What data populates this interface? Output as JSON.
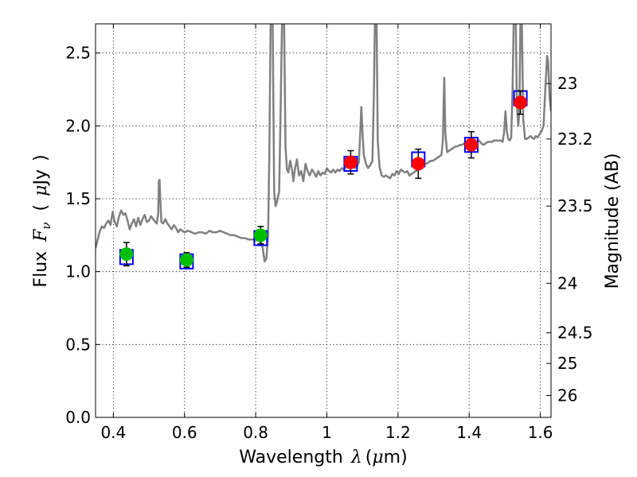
{
  "chart_data": {
    "type": "scatter",
    "xlabel": "Wavelength",
    "xlabel_symbol": "λ",
    "xlabel_unit_open": "(",
    "xlabel_unit_mu": "μ",
    "xlabel_unit_rest": "m)",
    "ylabel": "Flux",
    "ylabel_symbol": "F",
    "ylabel_subscript": "ν",
    "ylabel_unit_open": "(",
    "ylabel_unit_mu": "μ",
    "ylabel_unit_rest": "Jy",
    "ylabel_unit_close": ")",
    "y2label": "Magnitude (AB)",
    "xlim": [
      0.35,
      1.63
    ],
    "ylim": [
      0.0,
      2.7
    ],
    "grid": true,
    "x_ticks": [
      {
        "v": 0.4,
        "label": "0.4"
      },
      {
        "v": 0.6,
        "label": "0.6"
      },
      {
        "v": 0.8,
        "label": "0.8"
      },
      {
        "v": 1.0,
        "label": "1"
      },
      {
        "v": 1.2,
        "label": "1.2"
      },
      {
        "v": 1.4,
        "label": "1.4"
      },
      {
        "v": 1.6,
        "label": "1.6"
      }
    ],
    "y_ticks": [
      {
        "v": 0.0,
        "label": "0.0"
      },
      {
        "v": 0.5,
        "label": "0.5"
      },
      {
        "v": 1.0,
        "label": "1.0"
      },
      {
        "v": 1.5,
        "label": "1.5"
      },
      {
        "v": 2.0,
        "label": "2.0"
      },
      {
        "v": 2.5,
        "label": "2.5"
      }
    ],
    "y2_ticks": [
      {
        "flux": 2.29,
        "label": "23"
      },
      {
        "flux": 1.91,
        "label": "23.2"
      },
      {
        "flux": 1.45,
        "label": "23.5"
      },
      {
        "flux": 0.92,
        "label": "24"
      },
      {
        "flux": 0.58,
        "label": "24.5"
      },
      {
        "flux": 0.37,
        "label": "25"
      },
      {
        "flux": 0.15,
        "label": "26"
      }
    ],
    "series": [
      {
        "kind": "line",
        "color": "#808080",
        "points": [
          [
            0.35,
            1.16
          ],
          [
            0.356,
            1.22
          ],
          [
            0.362,
            1.28
          ],
          [
            0.368,
            1.31
          ],
          [
            0.374,
            1.3
          ],
          [
            0.38,
            1.33
          ],
          [
            0.386,
            1.35
          ],
          [
            0.392,
            1.32
          ],
          [
            0.398,
            1.41
          ],
          [
            0.404,
            1.34
          ],
          [
            0.41,
            1.31
          ],
          [
            0.416,
            1.38
          ],
          [
            0.422,
            1.42
          ],
          [
            0.428,
            1.39
          ],
          [
            0.434,
            1.4
          ],
          [
            0.44,
            1.35
          ],
          [
            0.446,
            1.29
          ],
          [
            0.452,
            1.33
          ],
          [
            0.458,
            1.36
          ],
          [
            0.464,
            1.31
          ],
          [
            0.47,
            1.37
          ],
          [
            0.476,
            1.32
          ],
          [
            0.482,
            1.36
          ],
          [
            0.488,
            1.39
          ],
          [
            0.494,
            1.34
          ],
          [
            0.5,
            1.35
          ],
          [
            0.506,
            1.38
          ],
          [
            0.512,
            1.36
          ],
          [
            0.518,
            1.34
          ],
          [
            0.522,
            1.33
          ],
          [
            0.526,
            1.4
          ],
          [
            0.528,
            1.62
          ],
          [
            0.53,
            1.63
          ],
          [
            0.532,
            1.5
          ],
          [
            0.535,
            1.34
          ],
          [
            0.54,
            1.33
          ],
          [
            0.546,
            1.36
          ],
          [
            0.552,
            1.33
          ],
          [
            0.558,
            1.31
          ],
          [
            0.564,
            1.29
          ],
          [
            0.57,
            1.32
          ],
          [
            0.576,
            1.3
          ],
          [
            0.582,
            1.27
          ],
          [
            0.588,
            1.29
          ],
          [
            0.594,
            1.28
          ],
          [
            0.6,
            1.27
          ],
          [
            0.61,
            1.28
          ],
          [
            0.62,
            1.27
          ],
          [
            0.63,
            1.26
          ],
          [
            0.64,
            1.27
          ],
          [
            0.65,
            1.27
          ],
          [
            0.66,
            1.26
          ],
          [
            0.67,
            1.28
          ],
          [
            0.68,
            1.27
          ],
          [
            0.69,
            1.27
          ],
          [
            0.7,
            1.28
          ],
          [
            0.71,
            1.27
          ],
          [
            0.72,
            1.26
          ],
          [
            0.73,
            1.25
          ],
          [
            0.74,
            1.25
          ],
          [
            0.75,
            1.24
          ],
          [
            0.76,
            1.23
          ],
          [
            0.77,
            1.23
          ],
          [
            0.78,
            1.22
          ],
          [
            0.79,
            1.22
          ],
          [
            0.8,
            1.22
          ],
          [
            0.81,
            1.21
          ],
          [
            0.815,
            1.2
          ],
          [
            0.82,
            1.16
          ],
          [
            0.825,
            1.07
          ],
          [
            0.83,
            1.09
          ],
          [
            0.835,
            1.25
          ],
          [
            0.838,
            1.75
          ],
          [
            0.842,
            2.7
          ],
          [
            0.848,
            2.7
          ],
          [
            0.852,
            1.55
          ],
          [
            0.856,
            1.45
          ],
          [
            0.86,
            1.48
          ],
          [
            0.866,
            1.55
          ],
          [
            0.87,
            2.1
          ],
          [
            0.874,
            2.7
          ],
          [
            0.88,
            2.7
          ],
          [
            0.884,
            1.85
          ],
          [
            0.888,
            1.7
          ],
          [
            0.892,
            1.68
          ],
          [
            0.897,
            1.76
          ],
          [
            0.902,
            1.7
          ],
          [
            0.906,
            1.62
          ],
          [
            0.91,
            1.7
          ],
          [
            0.916,
            1.77
          ],
          [
            0.922,
            1.66
          ],
          [
            0.928,
            1.69
          ],
          [
            0.934,
            1.62
          ],
          [
            0.94,
            1.74
          ],
          [
            0.946,
            1.69
          ],
          [
            0.952,
            1.66
          ],
          [
            0.958,
            1.7
          ],
          [
            0.964,
            1.68
          ],
          [
            0.97,
            1.65
          ],
          [
            0.976,
            1.69
          ],
          [
            0.982,
            1.66
          ],
          [
            0.988,
            1.68
          ],
          [
            0.994,
            1.67
          ],
          [
            1.0,
            1.71
          ],
          [
            1.006,
            1.69
          ],
          [
            1.012,
            1.68
          ],
          [
            1.018,
            1.7
          ],
          [
            1.024,
            1.68
          ],
          [
            1.03,
            1.7
          ],
          [
            1.036,
            1.69
          ],
          [
            1.042,
            1.71
          ],
          [
            1.048,
            1.7
          ],
          [
            1.054,
            1.72
          ],
          [
            1.06,
            1.71
          ],
          [
            1.066,
            1.72
          ],
          [
            1.072,
            1.73
          ],
          [
            1.078,
            1.71
          ],
          [
            1.084,
            1.72
          ],
          [
            1.09,
            1.75
          ],
          [
            1.094,
            1.96
          ],
          [
            1.097,
            2.13
          ],
          [
            1.1,
            1.96
          ],
          [
            1.104,
            1.8
          ],
          [
            1.11,
            1.74
          ],
          [
            1.116,
            1.71
          ],
          [
            1.122,
            1.73
          ],
          [
            1.128,
            1.76
          ],
          [
            1.132,
            2.2
          ],
          [
            1.135,
            2.7
          ],
          [
            1.14,
            2.7
          ],
          [
            1.143,
            1.9
          ],
          [
            1.148,
            1.72
          ],
          [
            1.154,
            1.66
          ],
          [
            1.16,
            1.65
          ],
          [
            1.166,
            1.66
          ],
          [
            1.172,
            1.65
          ],
          [
            1.178,
            1.64
          ],
          [
            1.184,
            1.67
          ],
          [
            1.19,
            1.66
          ],
          [
            1.196,
            1.69
          ],
          [
            1.202,
            1.67
          ],
          [
            1.208,
            1.7
          ],
          [
            1.214,
            1.69
          ],
          [
            1.22,
            1.68
          ],
          [
            1.226,
            1.69
          ],
          [
            1.232,
            1.66
          ],
          [
            1.238,
            1.67
          ],
          [
            1.244,
            1.68
          ],
          [
            1.25,
            1.69
          ],
          [
            1.256,
            1.7
          ],
          [
            1.262,
            1.72
          ],
          [
            1.268,
            1.73
          ],
          [
            1.274,
            1.74
          ],
          [
            1.28,
            1.74
          ],
          [
            1.286,
            1.75
          ],
          [
            1.292,
            1.76
          ],
          [
            1.298,
            1.76
          ],
          [
            1.304,
            1.77
          ],
          [
            1.31,
            1.78
          ],
          [
            1.316,
            1.79
          ],
          [
            1.322,
            1.8
          ],
          [
            1.326,
            1.9
          ],
          [
            1.33,
            2.33
          ],
          [
            1.333,
            1.95
          ],
          [
            1.338,
            1.82
          ],
          [
            1.344,
            1.83
          ],
          [
            1.35,
            1.84
          ],
          [
            1.356,
            1.85
          ],
          [
            1.362,
            1.86
          ],
          [
            1.368,
            1.86
          ],
          [
            1.374,
            1.87
          ],
          [
            1.38,
            1.87
          ],
          [
            1.386,
            1.88
          ],
          [
            1.392,
            1.88
          ],
          [
            1.398,
            1.88
          ],
          [
            1.404,
            1.89
          ],
          [
            1.41,
            1.89
          ],
          [
            1.416,
            1.89
          ],
          [
            1.422,
            1.89
          ],
          [
            1.428,
            1.9
          ],
          [
            1.434,
            1.88
          ],
          [
            1.44,
            1.87
          ],
          [
            1.446,
            1.88
          ],
          [
            1.452,
            1.89
          ],
          [
            1.458,
            1.89
          ],
          [
            1.464,
            1.89
          ],
          [
            1.47,
            1.9
          ],
          [
            1.476,
            1.9
          ],
          [
            1.482,
            1.9
          ],
          [
            1.488,
            1.9
          ],
          [
            1.494,
            1.89
          ],
          [
            1.498,
            1.95
          ],
          [
            1.502,
            2.1
          ],
          [
            1.506,
            1.96
          ],
          [
            1.51,
            1.91
          ],
          [
            1.514,
            1.9
          ],
          [
            1.518,
            1.92
          ],
          [
            1.522,
            2.25
          ],
          [
            1.525,
            2.7
          ],
          [
            1.531,
            2.7
          ],
          [
            1.534,
            2.15
          ],
          [
            1.538,
            2.0
          ],
          [
            1.541,
            2.1
          ],
          [
            1.544,
            2.7
          ],
          [
            1.548,
            2.7
          ],
          [
            1.552,
            2.05
          ],
          [
            1.557,
            1.91
          ],
          [
            1.562,
            1.91
          ],
          [
            1.567,
            1.92
          ],
          [
            1.572,
            1.93
          ],
          [
            1.577,
            1.92
          ],
          [
            1.582,
            1.91
          ],
          [
            1.587,
            1.93
          ],
          [
            1.592,
            1.92
          ],
          [
            1.597,
            1.94
          ],
          [
            1.603,
            1.96
          ],
          [
            1.609,
            2.0
          ],
          [
            1.615,
            2.3
          ],
          [
            1.619,
            2.48
          ],
          [
            1.622,
            2.44
          ],
          [
            1.626,
            2.2
          ],
          [
            1.63,
            2.1
          ]
        ]
      },
      {
        "kind": "points",
        "color": "#00bf00",
        "points": [
          {
            "x": 0.437,
            "y": 1.12,
            "err": 0.08
          },
          {
            "x": 0.606,
            "y": 1.08,
            "err": 0.05
          },
          {
            "x": 0.814,
            "y": 1.25,
            "err": 0.06
          }
        ]
      },
      {
        "kind": "points",
        "color": "#ff0000",
        "points": [
          {
            "x": 1.067,
            "y": 1.75,
            "err": 0.08
          },
          {
            "x": 1.257,
            "y": 1.74,
            "err": 0.1
          },
          {
            "x": 1.406,
            "y": 1.87,
            "err": 0.09
          },
          {
            "x": 1.544,
            "y": 2.16,
            "err": 0.08
          }
        ]
      },
      {
        "kind": "model-boxes",
        "color": "#0000ff",
        "points": [
          {
            "x": 0.437,
            "y": 1.1
          },
          {
            "x": 0.606,
            "y": 1.07
          },
          {
            "x": 0.814,
            "y": 1.23
          },
          {
            "x": 1.067,
            "y": 1.74
          },
          {
            "x": 1.257,
            "y": 1.77
          },
          {
            "x": 1.406,
            "y": 1.87
          },
          {
            "x": 1.544,
            "y": 2.19
          }
        ]
      }
    ]
  }
}
